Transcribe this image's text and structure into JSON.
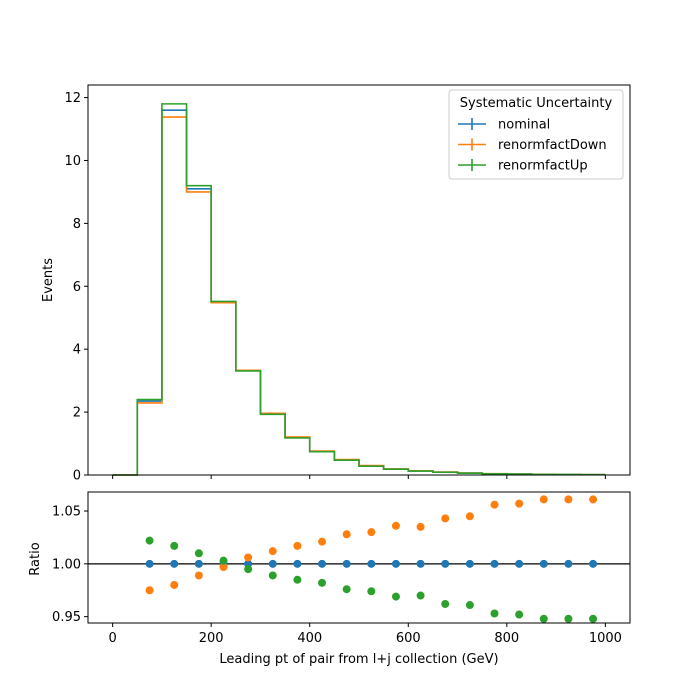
{
  "chart_data": [
    {
      "type": "histogram-step",
      "xlabel": "",
      "ylabel": "Events",
      "xlim": [
        -50,
        1050
      ],
      "ylim": [
        0,
        12.4
      ],
      "yticks": [
        0,
        2,
        4,
        6,
        8,
        10,
        12
      ],
      "ytick_labels": [
        "0",
        "2",
        "4",
        "6",
        "8",
        "10",
        "12"
      ],
      "legend": {
        "title": "Systematic Uncertainty",
        "placement": "top-right"
      },
      "bin_edges": [
        0,
        50,
        100,
        150,
        200,
        250,
        300,
        350,
        400,
        450,
        500,
        550,
        600,
        650,
        700,
        750,
        800,
        850,
        900,
        950,
        1000
      ],
      "series": [
        {
          "name": "nominal",
          "color": "#1f77b4",
          "values": [
            0.0,
            2.35,
            11.6,
            9.1,
            5.5,
            3.32,
            1.95,
            1.2,
            0.75,
            0.48,
            0.29,
            0.19,
            0.13,
            0.09,
            0.06,
            0.04,
            0.03,
            0.02,
            0.015,
            0.01
          ]
        },
        {
          "name": "renormfactDown",
          "color": "#ff7f0e",
          "values": [
            0.0,
            2.29,
            11.38,
            9.0,
            5.48,
            3.33,
            1.96,
            1.21,
            0.76,
            0.49,
            0.3,
            0.195,
            0.135,
            0.094,
            0.063,
            0.042,
            0.032,
            0.021,
            0.016,
            0.011
          ]
        },
        {
          "name": "renormfactUp",
          "color": "#2ca02c",
          "values": [
            0.0,
            2.4,
            11.8,
            9.2,
            5.52,
            3.31,
            1.93,
            1.18,
            0.74,
            0.47,
            0.28,
            0.185,
            0.126,
            0.087,
            0.058,
            0.038,
            0.029,
            0.019,
            0.014,
            0.0095
          ]
        }
      ]
    },
    {
      "type": "scatter",
      "xlabel": "Leading pt of pair from l+j collection (GeV)",
      "ylabel": "Ratio",
      "xlim": [
        -50,
        1050
      ],
      "ylim": [
        0.944,
        1.068
      ],
      "xticks": [
        0,
        200,
        400,
        600,
        800,
        1000
      ],
      "xtick_labels": [
        "0",
        "200",
        "400",
        "600",
        "800",
        "1000"
      ],
      "yticks": [
        0.95,
        1.0,
        1.05
      ],
      "ytick_labels": [
        "0.95",
        "1.00",
        "1.05"
      ],
      "reference_line": 1.0,
      "x": [
        75,
        125,
        175,
        225,
        275,
        325,
        375,
        425,
        475,
        525,
        575,
        625,
        675,
        725,
        775,
        825,
        875,
        925,
        975
      ],
      "series": [
        {
          "name": "nominal",
          "color": "#1f77b4",
          "values": [
            1.0,
            1.0,
            1.0,
            1.0,
            1.0,
            1.0,
            1.0,
            1.0,
            1.0,
            1.0,
            1.0,
            1.0,
            1.0,
            1.0,
            1.0,
            1.0,
            1.0,
            1.0,
            1.0
          ]
        },
        {
          "name": "renormfactDown",
          "color": "#ff7f0e",
          "values": [
            0.975,
            0.98,
            0.989,
            0.997,
            1.006,
            1.012,
            1.017,
            1.021,
            1.028,
            1.03,
            1.036,
            1.035,
            1.043,
            1.045,
            1.056,
            1.057,
            1.061,
            1.061,
            1.061
          ]
        },
        {
          "name": "renormfactUp",
          "color": "#2ca02c",
          "values": [
            1.022,
            1.017,
            1.01,
            1.003,
            0.995,
            0.989,
            0.985,
            0.982,
            0.976,
            0.974,
            0.969,
            0.97,
            0.962,
            0.961,
            0.953,
            0.952,
            0.948,
            0.948,
            0.948
          ]
        }
      ]
    }
  ]
}
